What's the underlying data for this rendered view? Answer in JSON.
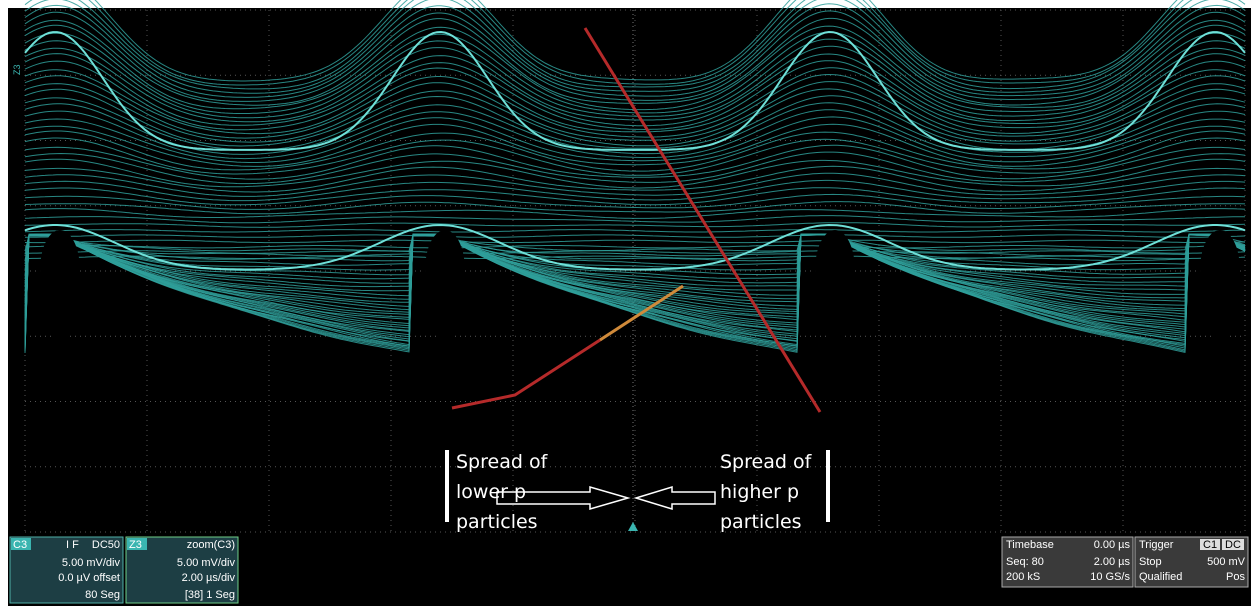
{
  "screen": {
    "trace_label": "Z3"
  },
  "annotations": {
    "left": [
      "Spread of",
      "lower p",
      "particles"
    ],
    "right": [
      "Spread of",
      "higher p",
      "particles"
    ]
  },
  "channel": {
    "name": "C3",
    "flags": "I F",
    "coupling": "DC50",
    "scale": "5.00 mV/div",
    "offset": "0.0 µV offset",
    "segments": "80 Seg"
  },
  "zoom": {
    "name": "Z3",
    "source": "zoom(C3)",
    "scale": "5.00 mV/div",
    "timebase": "2.00 µs/div",
    "segments": "[38] 1 Seg"
  },
  "timebase": {
    "title": "Timebase",
    "delay": "0.00 µs",
    "seq": "Seq: 80",
    "div": "2.00 µs",
    "samples": "200 kS",
    "rate": "10 GS/s"
  },
  "trigger": {
    "title": "Trigger",
    "source": "C1",
    "coupling": "DC",
    "mode": "Stop",
    "level": "500 mV",
    "type": "Qualified",
    "slope": "Pos"
  }
}
